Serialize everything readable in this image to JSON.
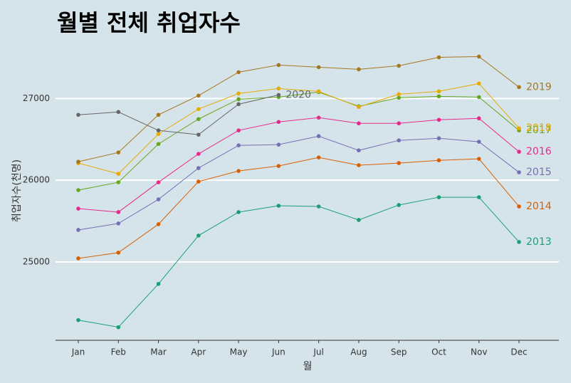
{
  "chart_data": {
    "type": "line",
    "title": "월별 전체 취업자수",
    "xlabel": "월",
    "ylabel": "취업자수(천명)",
    "categories": [
      "Jan",
      "Feb",
      "Mar",
      "Apr",
      "May",
      "Jun",
      "Jul",
      "Aug",
      "Sep",
      "Oct",
      "Nov",
      "Dec"
    ],
    "ylim": [
      24040,
      27700
    ],
    "yticks": [
      25000,
      26000,
      27000
    ],
    "grid": true,
    "series": [
      {
        "name": "2013",
        "color": "#1b9e77",
        "values": [
          24287,
          24200,
          24730,
          25322,
          25609,
          25687,
          25678,
          25513,
          25696,
          25791,
          25791,
          25243
        ]
      },
      {
        "name": "2014",
        "color": "#d95f02",
        "values": [
          25043,
          25113,
          25461,
          25983,
          26113,
          26174,
          26278,
          26183,
          26209,
          26243,
          26261,
          25678
        ]
      },
      {
        "name": "2015",
        "color": "#7570b3",
        "values": [
          25391,
          25470,
          25765,
          26148,
          26426,
          26435,
          26539,
          26365,
          26487,
          26513,
          26470,
          26096
        ]
      },
      {
        "name": "2016",
        "color": "#e7298a",
        "values": [
          25652,
          25609,
          25974,
          26322,
          26609,
          26713,
          26765,
          26696,
          26696,
          26739,
          26757,
          26348
        ]
      },
      {
        "name": "2017",
        "color": "#66a61e",
        "values": [
          25878,
          25974,
          26443,
          26748,
          26991,
          27017,
          27078,
          26904,
          27009,
          27026,
          27017,
          26609
        ]
      },
      {
        "name": "2018",
        "color": "#e6ab02",
        "values": [
          26209,
          26078,
          26565,
          26870,
          27061,
          27122,
          27087,
          26896,
          27052,
          27087,
          27183,
          26635
        ]
      },
      {
        "name": "2019",
        "color": "#a6761d",
        "values": [
          26226,
          26339,
          26800,
          27035,
          27322,
          27409,
          27383,
          27357,
          27400,
          27504,
          27513,
          27139
        ]
      },
      {
        "name": "2020",
        "color": "#666666",
        "values": [
          26800,
          26835,
          26609,
          26557,
          26930,
          27043,
          null,
          null,
          null,
          null,
          null,
          null
        ]
      }
    ]
  }
}
